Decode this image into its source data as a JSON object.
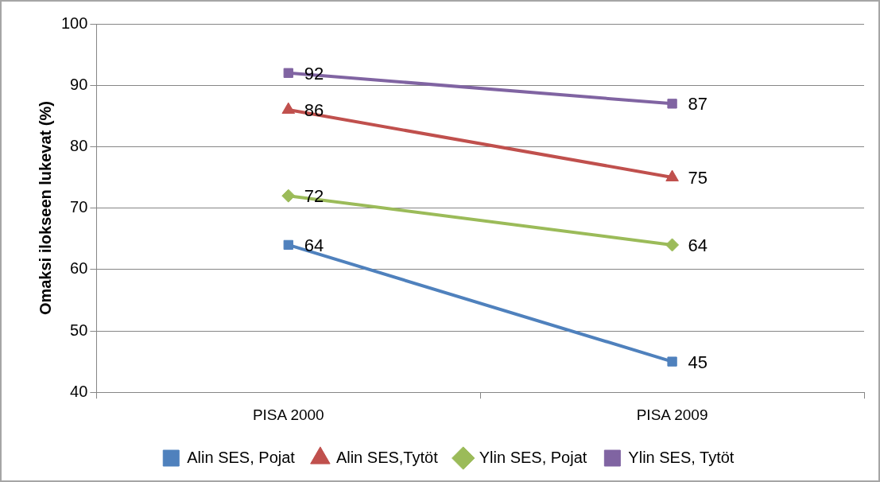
{
  "chart_data": {
    "type": "line",
    "ylabel": "Omaksi ilokseen lukevat (%)",
    "categories": [
      "PISA 2000",
      "PISA 2009"
    ],
    "series": [
      {
        "name": "Alin SES, Pojat",
        "color": "#4f81bd",
        "marker": "square",
        "values": [
          64,
          45
        ]
      },
      {
        "name": "Alin SES,Tytöt",
        "color": "#c0504d",
        "marker": "triangle",
        "values": [
          86,
          75
        ]
      },
      {
        "name": "Ylin SES, Pojat",
        "color": "#9bbb59",
        "marker": "diamond",
        "values": [
          72,
          64
        ]
      },
      {
        "name": "Ylin SES, Tytöt",
        "color": "#8064a2",
        "marker": "square",
        "values": [
          92,
          87
        ]
      }
    ],
    "ylim": [
      40,
      100
    ],
    "yticks": [
      40,
      50,
      60,
      70,
      80,
      90,
      100
    ],
    "grid": "y",
    "legend": "bottom",
    "data_labels": true
  }
}
